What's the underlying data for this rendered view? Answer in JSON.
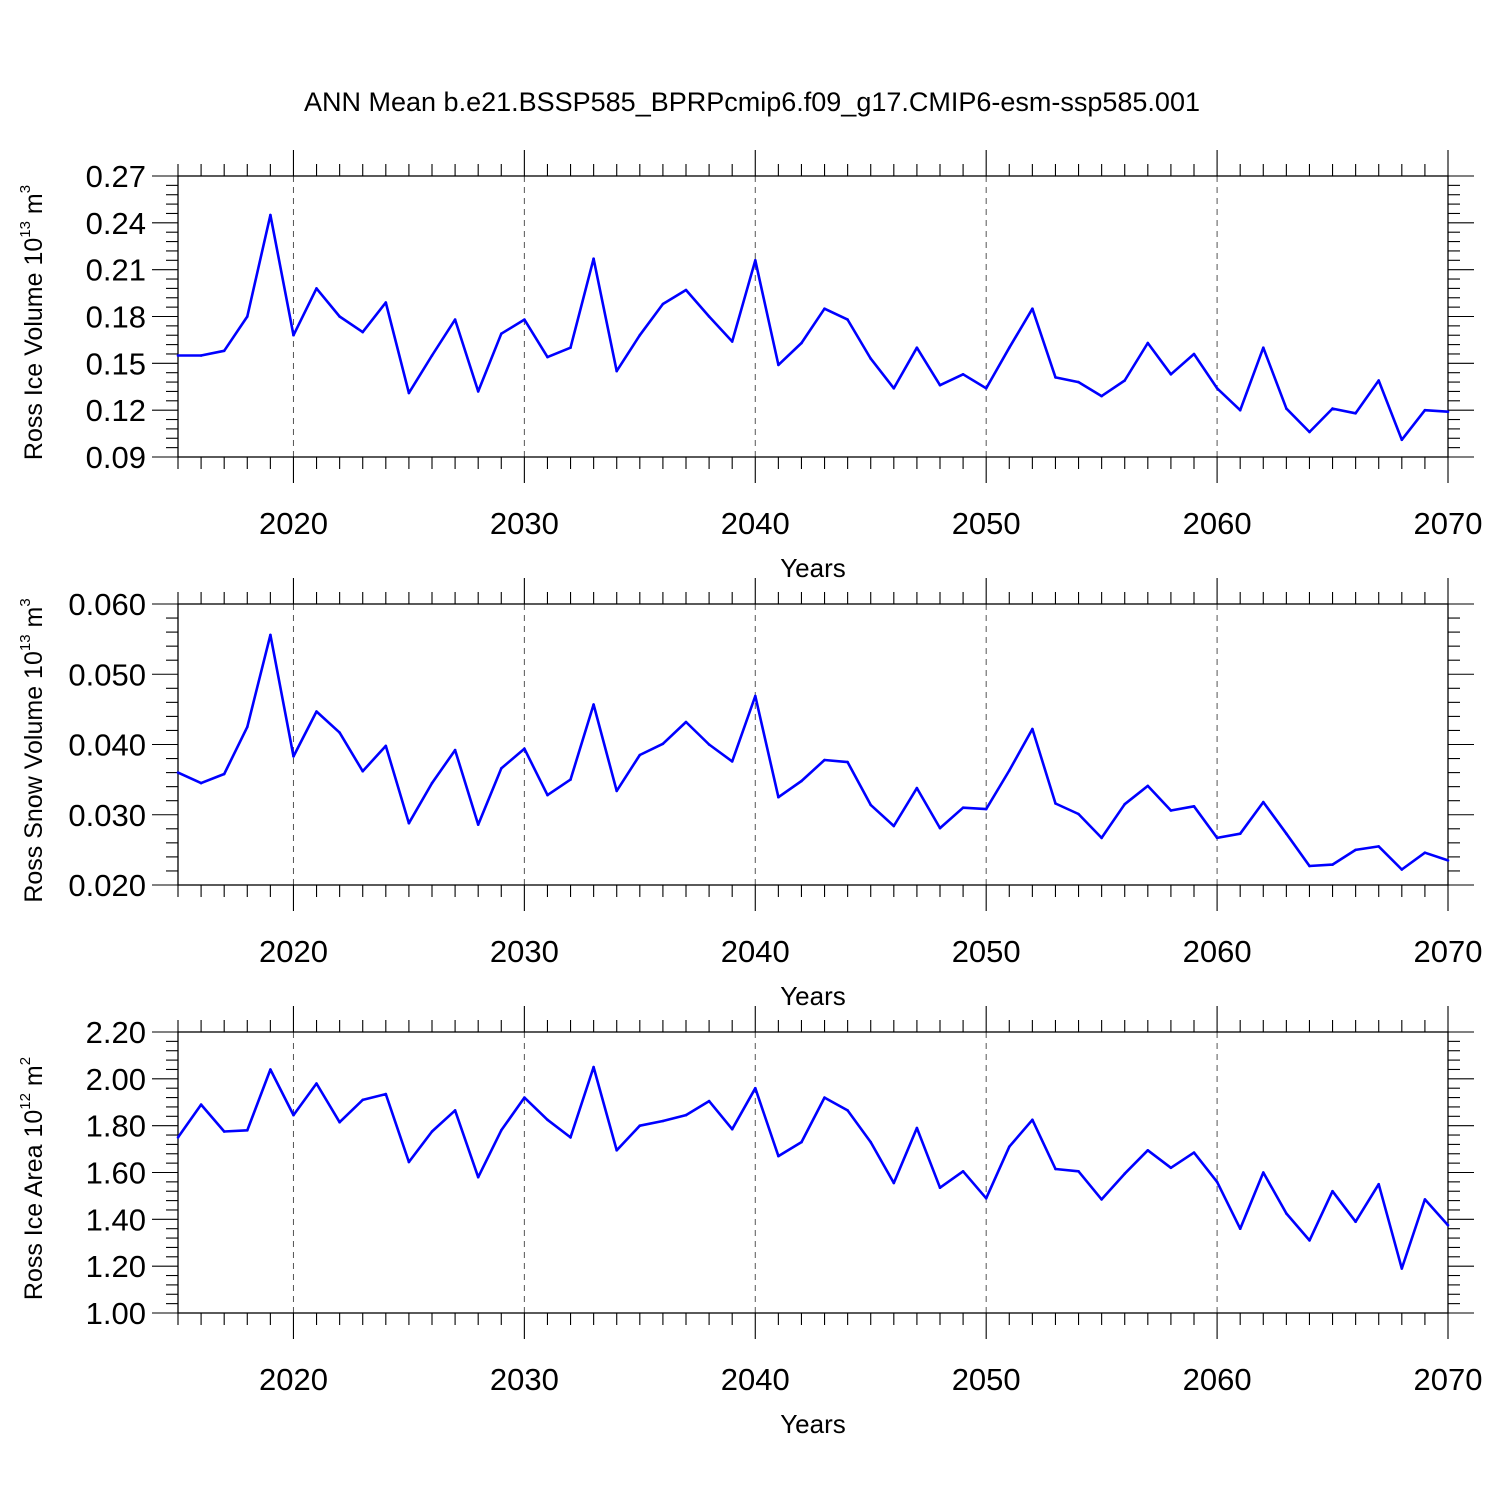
{
  "title": "ANN Mean b.e21.BSSP585_BPRPcmip6.f09_g17.CMIP6-esm-ssp585.001",
  "colors": {
    "line": "#0000ff",
    "axis": "#000000"
  },
  "chart_data": [
    {
      "type": "line",
      "ylabel": {
        "main": "Ross Ice Volume 10",
        "exp": "13",
        "unit": " m",
        "unit_exp": "3"
      },
      "xlabel": "Years",
      "xlim": [
        2015,
        2070
      ],
      "ylim": [
        0.09,
        0.27
      ],
      "yticks": [
        0.09,
        0.12,
        0.15,
        0.18,
        0.21,
        0.24,
        0.27
      ],
      "ytick_labels": [
        "0.09",
        "0.12",
        "0.15",
        "0.18",
        "0.21",
        "0.24",
        "0.27"
      ],
      "xticks": [
        2020,
        2030,
        2040,
        2050,
        2060,
        2070
      ],
      "xtick_labels": [
        "2020",
        "2030",
        "2040",
        "2050",
        "2060",
        "2070"
      ],
      "grid": "vertical dashed at major x ticks",
      "x": [
        2015,
        2016,
        2017,
        2018,
        2019,
        2020,
        2021,
        2022,
        2023,
        2024,
        2025,
        2026,
        2027,
        2028,
        2029,
        2030,
        2031,
        2032,
        2033,
        2034,
        2035,
        2036,
        2037,
        2038,
        2039,
        2040,
        2041,
        2042,
        2043,
        2044,
        2045,
        2046,
        2047,
        2048,
        2049,
        2050,
        2051,
        2052,
        2053,
        2054,
        2055,
        2056,
        2057,
        2058,
        2059,
        2060,
        2061,
        2062,
        2063,
        2064,
        2065,
        2066,
        2067,
        2068,
        2069,
        2070
      ],
      "series": [
        {
          "values": [
            0.155,
            0.155,
            0.158,
            0.18,
            0.245,
            0.168,
            0.198,
            0.18,
            0.17,
            0.189,
            0.131,
            0.155,
            0.178,
            0.132,
            0.169,
            0.178,
            0.154,
            0.16,
            0.217,
            0.145,
            0.168,
            0.188,
            0.197,
            0.18,
            0.164,
            0.216,
            0.149,
            0.163,
            0.185,
            0.178,
            0.153,
            0.134,
            0.16,
            0.136,
            0.143,
            0.134,
            0.16,
            0.185,
            0.141,
            0.138,
            0.129,
            0.139,
            0.163,
            0.143,
            0.156,
            0.134,
            0.12,
            0.16,
            0.121,
            0.106,
            0.121,
            0.118,
            0.139,
            0.101,
            0.12,
            0.119
          ]
        }
      ]
    },
    {
      "type": "line",
      "ylabel": {
        "main": "Ross Snow Volume 10",
        "exp": "13",
        "unit": " m",
        "unit_exp": "3"
      },
      "xlabel": "Years",
      "xlim": [
        2015,
        2070
      ],
      "ylim": [
        0.02,
        0.06
      ],
      "yticks": [
        0.02,
        0.03,
        0.04,
        0.05,
        0.06
      ],
      "ytick_labels": [
        "0.020",
        "0.030",
        "0.040",
        "0.050",
        "0.060"
      ],
      "xticks": [
        2020,
        2030,
        2040,
        2050,
        2060,
        2070
      ],
      "xtick_labels": [
        "2020",
        "2030",
        "2040",
        "2050",
        "2060",
        "2070"
      ],
      "grid": "vertical dashed at major x ticks",
      "x": [
        2015,
        2016,
        2017,
        2018,
        2019,
        2020,
        2021,
        2022,
        2023,
        2024,
        2025,
        2026,
        2027,
        2028,
        2029,
        2030,
        2031,
        2032,
        2033,
        2034,
        2035,
        2036,
        2037,
        2038,
        2039,
        2040,
        2041,
        2042,
        2043,
        2044,
        2045,
        2046,
        2047,
        2048,
        2049,
        2050,
        2051,
        2052,
        2053,
        2054,
        2055,
        2056,
        2057,
        2058,
        2059,
        2060,
        2061,
        2062,
        2063,
        2064,
        2065,
        2066,
        2067,
        2068,
        2069,
        2070
      ],
      "series": [
        {
          "values": [
            0.036,
            0.0345,
            0.0358,
            0.0425,
            0.0556,
            0.0383,
            0.0447,
            0.0417,
            0.0362,
            0.0398,
            0.0288,
            0.0345,
            0.0392,
            0.0286,
            0.0366,
            0.0394,
            0.0328,
            0.035,
            0.0457,
            0.0334,
            0.0385,
            0.0401,
            0.0432,
            0.04,
            0.0376,
            0.0469,
            0.0325,
            0.0348,
            0.0378,
            0.0375,
            0.0314,
            0.0284,
            0.0338,
            0.0281,
            0.031,
            0.0308,
            0.0363,
            0.0422,
            0.0316,
            0.0301,
            0.0267,
            0.0315,
            0.0341,
            0.0306,
            0.0312,
            0.0267,
            0.0273,
            0.0318,
            0.0273,
            0.0227,
            0.0229,
            0.025,
            0.0255,
            0.0222,
            0.0246,
            0.0235
          ]
        }
      ]
    },
    {
      "type": "line",
      "ylabel": {
        "main": "Ross Ice Area 10",
        "exp": "12",
        "unit": " m",
        "unit_exp": "2"
      },
      "xlabel": "Years",
      "xlim": [
        2015,
        2070
      ],
      "ylim": [
        1.0,
        2.2
      ],
      "yticks": [
        1.0,
        1.2,
        1.4,
        1.6,
        1.8,
        2.0,
        2.2
      ],
      "ytick_labels": [
        "1.00",
        "1.20",
        "1.40",
        "1.60",
        "1.80",
        "2.00",
        "2.20"
      ],
      "xticks": [
        2020,
        2030,
        2040,
        2050,
        2060,
        2070
      ],
      "xtick_labels": [
        "2020",
        "2030",
        "2040",
        "2050",
        "2060",
        "2070"
      ],
      "grid": "vertical dashed at major x ticks",
      "x": [
        2015,
        2016,
        2017,
        2018,
        2019,
        2020,
        2021,
        2022,
        2023,
        2024,
        2025,
        2026,
        2027,
        2028,
        2029,
        2030,
        2031,
        2032,
        2033,
        2034,
        2035,
        2036,
        2037,
        2038,
        2039,
        2040,
        2041,
        2042,
        2043,
        2044,
        2045,
        2046,
        2047,
        2048,
        2049,
        2050,
        2051,
        2052,
        2053,
        2054,
        2055,
        2056,
        2057,
        2058,
        2059,
        2060,
        2061,
        2062,
        2063,
        2064,
        2065,
        2066,
        2067,
        2068,
        2069,
        2070
      ],
      "series": [
        {
          "values": [
            1.75,
            1.89,
            1.775,
            1.78,
            2.04,
            1.845,
            1.98,
            1.815,
            1.91,
            1.935,
            1.645,
            1.775,
            1.865,
            1.58,
            1.78,
            1.92,
            1.825,
            1.75,
            2.05,
            1.695,
            1.8,
            1.82,
            1.845,
            1.905,
            1.785,
            1.96,
            1.67,
            1.73,
            1.92,
            1.865,
            1.73,
            1.555,
            1.79,
            1.535,
            1.605,
            1.49,
            1.71,
            1.825,
            1.615,
            1.605,
            1.485,
            1.595,
            1.695,
            1.62,
            1.685,
            1.56,
            1.36,
            1.6,
            1.425,
            1.31,
            1.52,
            1.39,
            1.55,
            1.19,
            1.485,
            1.375
          ]
        }
      ]
    }
  ]
}
